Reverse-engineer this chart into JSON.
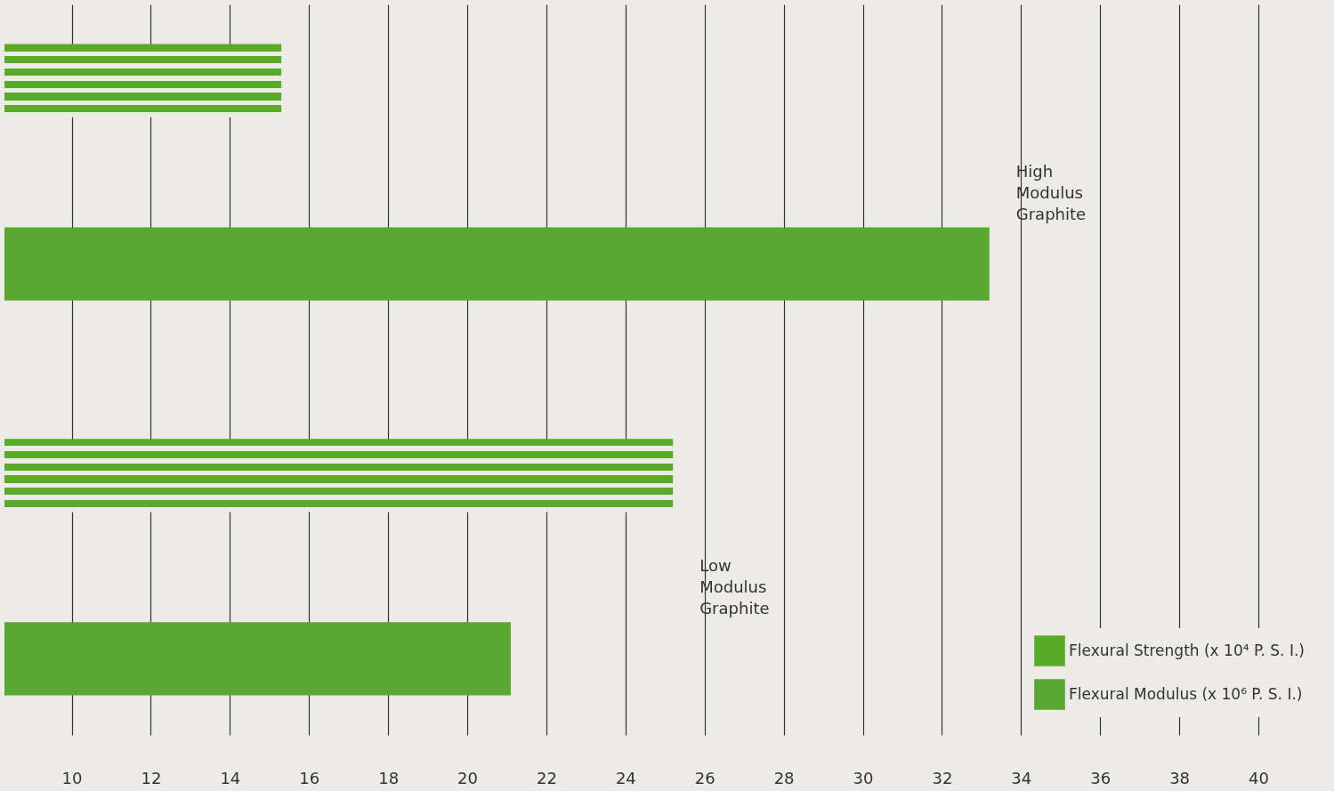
{
  "chart_data": {
    "type": "bar",
    "orientation": "horizontal",
    "categories": [
      "High Modulus Graphite",
      "Low Modulus Graphite"
    ],
    "series": [
      {
        "name": "Flexural Strength (x 10⁴ P. S. I.)",
        "color": "#5aab2a",
        "values": [
          15.3,
          25.2
        ]
      },
      {
        "name": "Flexural Modulus (x 10⁶ P. S. I.)",
        "color": "#5aa832",
        "values": [
          33.2,
          21.1
        ]
      }
    ],
    "xlim": [
      8.3,
      41.8
    ],
    "xticks": [
      10,
      12,
      14,
      16,
      18,
      20,
      22,
      24,
      26,
      28,
      30,
      32,
      34,
      36,
      38,
      40
    ],
    "grid": "x",
    "tick_labels": "x",
    "legend": "bottom right"
  }
}
